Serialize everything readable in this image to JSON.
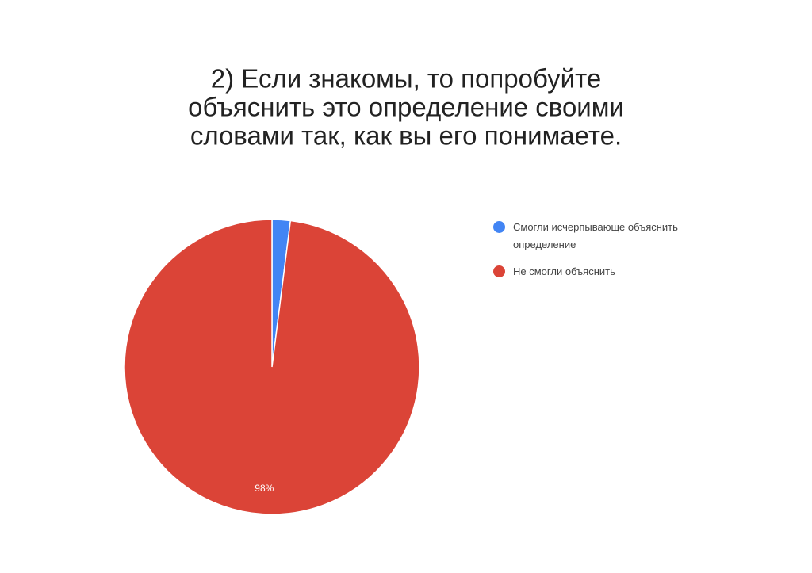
{
  "chart_data": {
    "type": "pie",
    "title": [
      "2) Если знакомы, то попробуйте",
      "объяснить это определение своими",
      "словами так, как вы его понимаете."
    ],
    "categories": [
      "Смогли исчерпывающе объяснить определение",
      "Не смогли объяснить"
    ],
    "values": [
      2,
      98
    ],
    "value_labels": [
      null,
      "98%"
    ],
    "colors": [
      "#4285f4",
      "#db4437"
    ],
    "legend": "right"
  }
}
